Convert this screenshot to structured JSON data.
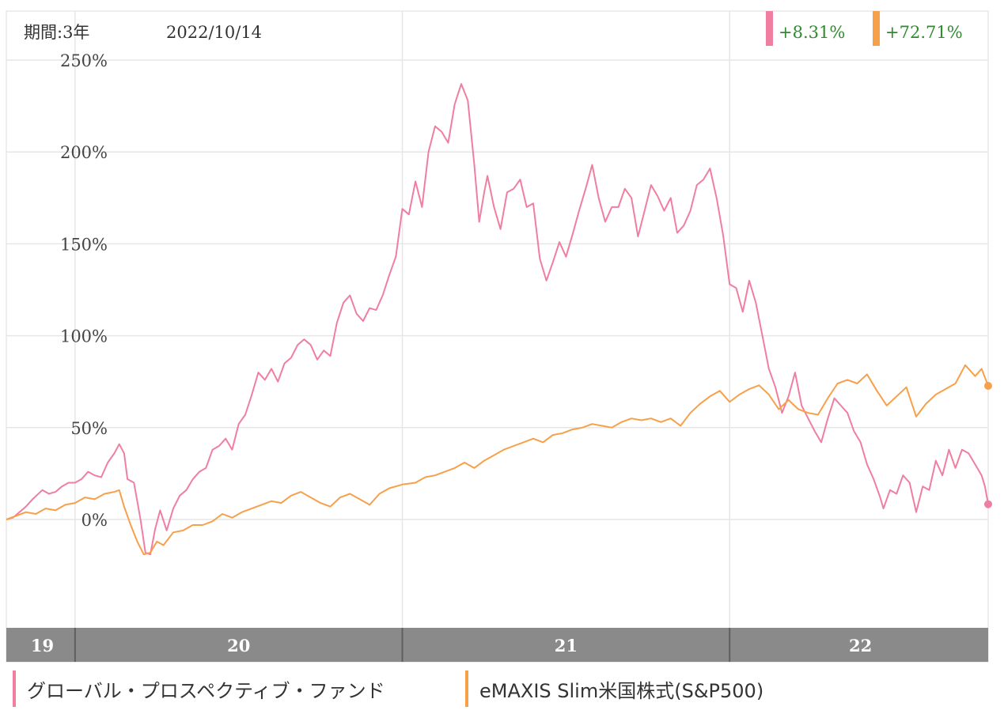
{
  "header": {
    "period_label": "期間:3年",
    "date_label": "2022/10/14"
  },
  "colors": {
    "fund": "#f07ea0",
    "sp500": "#f7a04a",
    "grid": "#e6e6e6",
    "return_text": "#2e8b2e",
    "axis_band": "#8a8a8a",
    "axis_text": "#ffffff"
  },
  "chart_data": {
    "type": "line",
    "title": "",
    "xlabel": "",
    "ylabel": "",
    "ylim": [
      -60,
      270
    ],
    "yticks": [
      0,
      50,
      100,
      150,
      200,
      250
    ],
    "ytick_labels": [
      "0%",
      "50%",
      "100%",
      "150%",
      "200%",
      "250%"
    ],
    "xlim": [
      2019.79,
      2022.79
    ],
    "year_boundaries": [
      2020.0,
      2021.0,
      2022.0
    ],
    "x_axis_labels": [
      {
        "label": "19",
        "x": 2019.9
      },
      {
        "label": "20",
        "x": 2020.5
      },
      {
        "label": "21",
        "x": 2021.5
      },
      {
        "label": "22",
        "x": 2022.4
      }
    ],
    "legend_placement": "bottom",
    "grid": true,
    "series": [
      {
        "name": "グローバル・プロスペクティブ・ファンド",
        "color": "#f07ea0",
        "final_return": "+8.31%",
        "points": [
          [
            2019.79,
            0
          ],
          [
            2019.81,
            1
          ],
          [
            2019.83,
            4
          ],
          [
            2019.85,
            7
          ],
          [
            2019.87,
            11
          ],
          [
            2019.9,
            16
          ],
          [
            2019.92,
            14
          ],
          [
            2019.94,
            15
          ],
          [
            2019.96,
            18
          ],
          [
            2019.98,
            20
          ],
          [
            2020.0,
            20
          ],
          [
            2020.02,
            22
          ],
          [
            2020.04,
            26
          ],
          [
            2020.06,
            24
          ],
          [
            2020.08,
            23
          ],
          [
            2020.1,
            31
          ],
          [
            2020.12,
            36
          ],
          [
            2020.135,
            41
          ],
          [
            2020.15,
            36
          ],
          [
            2020.16,
            22
          ],
          [
            2020.18,
            20
          ],
          [
            2020.2,
            0
          ],
          [
            2020.215,
            -18
          ],
          [
            2020.23,
            -19
          ],
          [
            2020.245,
            -5
          ],
          [
            2020.26,
            5
          ],
          [
            2020.28,
            -6
          ],
          [
            2020.3,
            6
          ],
          [
            2020.32,
            13
          ],
          [
            2020.34,
            16
          ],
          [
            2020.36,
            22
          ],
          [
            2020.38,
            26
          ],
          [
            2020.4,
            28
          ],
          [
            2020.42,
            38
          ],
          [
            2020.44,
            40
          ],
          [
            2020.46,
            44
          ],
          [
            2020.48,
            38
          ],
          [
            2020.5,
            52
          ],
          [
            2020.52,
            57
          ],
          [
            2020.54,
            68
          ],
          [
            2020.56,
            80
          ],
          [
            2020.58,
            76
          ],
          [
            2020.6,
            82
          ],
          [
            2020.62,
            75
          ],
          [
            2020.64,
            85
          ],
          [
            2020.66,
            88
          ],
          [
            2020.68,
            95
          ],
          [
            2020.7,
            98
          ],
          [
            2020.72,
            95
          ],
          [
            2020.74,
            87
          ],
          [
            2020.76,
            92
          ],
          [
            2020.78,
            89
          ],
          [
            2020.8,
            107
          ],
          [
            2020.82,
            118
          ],
          [
            2020.84,
            122
          ],
          [
            2020.86,
            112
          ],
          [
            2020.88,
            108
          ],
          [
            2020.9,
            115
          ],
          [
            2020.92,
            114
          ],
          [
            2020.94,
            122
          ],
          [
            2020.96,
            133
          ],
          [
            2020.98,
            143
          ],
          [
            2021.0,
            169
          ],
          [
            2021.02,
            166
          ],
          [
            2021.04,
            184
          ],
          [
            2021.06,
            170
          ],
          [
            2021.08,
            200
          ],
          [
            2021.1,
            214
          ],
          [
            2021.12,
            211
          ],
          [
            2021.14,
            205
          ],
          [
            2021.16,
            226
          ],
          [
            2021.18,
            237
          ],
          [
            2021.2,
            228
          ],
          [
            2021.22,
            193
          ],
          [
            2021.235,
            162
          ],
          [
            2021.25,
            178
          ],
          [
            2021.26,
            187
          ],
          [
            2021.28,
            170
          ],
          [
            2021.3,
            158
          ],
          [
            2021.32,
            178
          ],
          [
            2021.34,
            180
          ],
          [
            2021.36,
            185
          ],
          [
            2021.38,
            170
          ],
          [
            2021.4,
            172
          ],
          [
            2021.42,
            142
          ],
          [
            2021.44,
            130
          ],
          [
            2021.46,
            140
          ],
          [
            2021.48,
            151
          ],
          [
            2021.5,
            143
          ],
          [
            2021.52,
            155
          ],
          [
            2021.54,
            168
          ],
          [
            2021.56,
            180
          ],
          [
            2021.58,
            193
          ],
          [
            2021.6,
            175
          ],
          [
            2021.62,
            162
          ],
          [
            2021.64,
            170
          ],
          [
            2021.66,
            170
          ],
          [
            2021.68,
            180
          ],
          [
            2021.7,
            175
          ],
          [
            2021.72,
            154
          ],
          [
            2021.74,
            168
          ],
          [
            2021.76,
            182
          ],
          [
            2021.78,
            176
          ],
          [
            2021.8,
            168
          ],
          [
            2021.82,
            175
          ],
          [
            2021.84,
            156
          ],
          [
            2021.86,
            160
          ],
          [
            2021.88,
            168
          ],
          [
            2021.9,
            182
          ],
          [
            2021.92,
            185
          ],
          [
            2021.94,
            191
          ],
          [
            2021.96,
            175
          ],
          [
            2021.98,
            155
          ],
          [
            2022.0,
            128
          ],
          [
            2022.02,
            126
          ],
          [
            2022.04,
            113
          ],
          [
            2022.06,
            130
          ],
          [
            2022.08,
            118
          ],
          [
            2022.1,
            100
          ],
          [
            2022.12,
            82
          ],
          [
            2022.14,
            72
          ],
          [
            2022.16,
            58
          ],
          [
            2022.18,
            67
          ],
          [
            2022.2,
            80
          ],
          [
            2022.22,
            62
          ],
          [
            2022.24,
            55
          ],
          [
            2022.26,
            48
          ],
          [
            2022.28,
            42
          ],
          [
            2022.3,
            55
          ],
          [
            2022.32,
            66
          ],
          [
            2022.34,
            62
          ],
          [
            2022.36,
            58
          ],
          [
            2022.38,
            48
          ],
          [
            2022.4,
            42
          ],
          [
            2022.42,
            30
          ],
          [
            2022.44,
            22
          ],
          [
            2022.46,
            12
          ],
          [
            2022.47,
            6
          ],
          [
            2022.49,
            16
          ],
          [
            2022.51,
            14
          ],
          [
            2022.53,
            24
          ],
          [
            2022.55,
            20
          ],
          [
            2022.57,
            4
          ],
          [
            2022.59,
            18
          ],
          [
            2022.61,
            16
          ],
          [
            2022.63,
            32
          ],
          [
            2022.65,
            24
          ],
          [
            2022.67,
            38
          ],
          [
            2022.69,
            28
          ],
          [
            2022.71,
            38
          ],
          [
            2022.73,
            36
          ],
          [
            2022.75,
            30
          ],
          [
            2022.77,
            24
          ],
          [
            2022.78,
            18
          ],
          [
            2022.79,
            8.31
          ]
        ]
      },
      {
        "name": "eMAXIS Slim米国株式(S&P500)",
        "color": "#f7a04a",
        "final_return": "+72.71%",
        "points": [
          [
            2019.79,
            0
          ],
          [
            2019.82,
            2
          ],
          [
            2019.85,
            4
          ],
          [
            2019.88,
            3
          ],
          [
            2019.91,
            6
          ],
          [
            2019.94,
            5
          ],
          [
            2019.97,
            8
          ],
          [
            2020.0,
            9
          ],
          [
            2020.03,
            12
          ],
          [
            2020.06,
            11
          ],
          [
            2020.09,
            14
          ],
          [
            2020.12,
            15
          ],
          [
            2020.135,
            16
          ],
          [
            2020.15,
            7
          ],
          [
            2020.17,
            -3
          ],
          [
            2020.19,
            -12
          ],
          [
            2020.21,
            -19
          ],
          [
            2020.23,
            -18
          ],
          [
            2020.25,
            -12
          ],
          [
            2020.27,
            -14
          ],
          [
            2020.3,
            -7
          ],
          [
            2020.33,
            -6
          ],
          [
            2020.36,
            -3
          ],
          [
            2020.39,
            -3
          ],
          [
            2020.42,
            -1
          ],
          [
            2020.45,
            3
          ],
          [
            2020.48,
            1
          ],
          [
            2020.51,
            4
          ],
          [
            2020.54,
            6
          ],
          [
            2020.57,
            8
          ],
          [
            2020.6,
            10
          ],
          [
            2020.63,
            9
          ],
          [
            2020.66,
            13
          ],
          [
            2020.69,
            15
          ],
          [
            2020.72,
            12
          ],
          [
            2020.75,
            9
          ],
          [
            2020.78,
            7
          ],
          [
            2020.81,
            12
          ],
          [
            2020.84,
            14
          ],
          [
            2020.87,
            11
          ],
          [
            2020.9,
            8
          ],
          [
            2020.93,
            14
          ],
          [
            2020.96,
            17
          ],
          [
            2021.0,
            19
          ],
          [
            2021.04,
            20
          ],
          [
            2021.07,
            23
          ],
          [
            2021.1,
            24
          ],
          [
            2021.13,
            26
          ],
          [
            2021.16,
            28
          ],
          [
            2021.19,
            31
          ],
          [
            2021.22,
            28
          ],
          [
            2021.25,
            32
          ],
          [
            2021.28,
            35
          ],
          [
            2021.31,
            38
          ],
          [
            2021.34,
            40
          ],
          [
            2021.37,
            42
          ],
          [
            2021.4,
            44
          ],
          [
            2021.43,
            42
          ],
          [
            2021.46,
            46
          ],
          [
            2021.49,
            47
          ],
          [
            2021.52,
            49
          ],
          [
            2021.55,
            50
          ],
          [
            2021.58,
            52
          ],
          [
            2021.61,
            51
          ],
          [
            2021.64,
            50
          ],
          [
            2021.67,
            53
          ],
          [
            2021.7,
            55
          ],
          [
            2021.73,
            54
          ],
          [
            2021.76,
            55
          ],
          [
            2021.79,
            53
          ],
          [
            2021.82,
            55
          ],
          [
            2021.85,
            51
          ],
          [
            2021.88,
            58
          ],
          [
            2021.91,
            63
          ],
          [
            2021.94,
            67
          ],
          [
            2021.97,
            70
          ],
          [
            2022.0,
            64
          ],
          [
            2022.03,
            68
          ],
          [
            2022.06,
            71
          ],
          [
            2022.09,
            73
          ],
          [
            2022.12,
            68
          ],
          [
            2022.15,
            60
          ],
          [
            2022.18,
            65
          ],
          [
            2022.21,
            60
          ],
          [
            2022.24,
            58
          ],
          [
            2022.27,
            57
          ],
          [
            2022.3,
            66
          ],
          [
            2022.33,
            74
          ],
          [
            2022.36,
            76
          ],
          [
            2022.39,
            74
          ],
          [
            2022.42,
            79
          ],
          [
            2022.45,
            70
          ],
          [
            2022.48,
            62
          ],
          [
            2022.51,
            67
          ],
          [
            2022.54,
            72
          ],
          [
            2022.57,
            56
          ],
          [
            2022.6,
            63
          ],
          [
            2022.63,
            68
          ],
          [
            2022.66,
            71
          ],
          [
            2022.69,
            74
          ],
          [
            2022.72,
            84
          ],
          [
            2022.75,
            78
          ],
          [
            2022.77,
            82
          ],
          [
            2022.79,
            72.71
          ]
        ]
      }
    ]
  }
}
